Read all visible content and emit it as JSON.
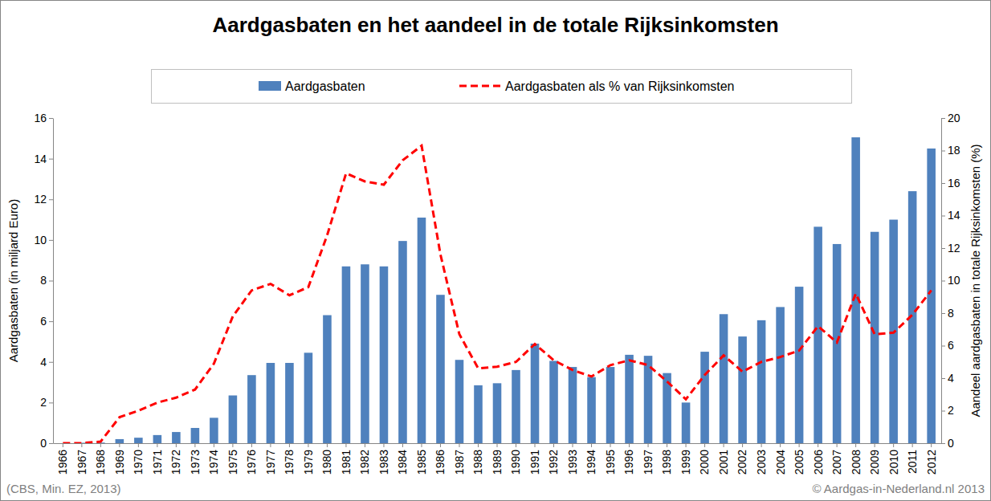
{
  "chart_data": {
    "type": "bar",
    "title": "Aardgasbaten en het aandeel in de totale Rijksinkomsten",
    "y_label": "Aardgasbaten (in miljard Euro)",
    "y2_label": "Aandeel aardgasbaten in totale Rijksinkomsten (%)",
    "annotations": [
      "(CBS, Min. EZ, 2013)",
      "© Aardgas-in-Nederland.nl 2013"
    ],
    "categories": [
      "1966",
      "1967",
      "1968",
      "1969",
      "1970",
      "1971",
      "1972",
      "1973",
      "1974",
      "1975",
      "1976",
      "1977",
      "1978",
      "1979",
      "1980",
      "1981",
      "1982",
      "1983",
      "1984",
      "1985",
      "1986",
      "1987",
      "1988",
      "1989",
      "1990",
      "1991",
      "1992",
      "1993",
      "1994",
      "1995",
      "1996",
      "1997",
      "1998",
      "1999",
      "2000",
      "2001",
      "2002",
      "2003",
      "2004",
      "2005",
      "2006",
      "2007",
      "2008",
      "2009",
      "2010",
      "2011",
      "2012"
    ],
    "series": [
      {
        "name": "Aardgasbaten",
        "type": "bar",
        "color": "#4f81bd",
        "values": [
          0,
          0.02,
          0.03,
          0.2,
          0.27,
          0.4,
          0.55,
          0.75,
          1.25,
          2.35,
          3.35,
          3.95,
          3.95,
          4.45,
          6.3,
          8.7,
          8.8,
          8.7,
          9.95,
          11.1,
          7.3,
          4.1,
          2.85,
          2.95,
          3.6,
          4.9,
          4.05,
          3.75,
          3.25,
          3.75,
          4.35,
          4.3,
          3.45,
          2.0,
          4.5,
          6.35,
          5.25,
          6.05,
          6.7,
          7.7,
          10.65,
          9.8,
          15.05,
          10.4,
          11.0,
          12.4,
          14.5
        ]
      },
      {
        "name": "Aardgasbaten als % van Rijksinkomsten",
        "type": "line",
        "color": "#ff0000",
        "line_style": "dashed",
        "axis": "y2",
        "values": [
          0,
          0,
          0.1,
          1.6,
          2.0,
          2.5,
          2.8,
          3.3,
          4.9,
          7.8,
          9.4,
          9.8,
          9.1,
          9.6,
          12.8,
          16.6,
          16.1,
          15.9,
          17.4,
          18.3,
          11.6,
          6.7,
          4.6,
          4.7,
          5.0,
          6.1,
          5.1,
          4.5,
          4.1,
          4.8,
          5.1,
          4.8,
          3.8,
          2.7,
          4.2,
          5.4,
          4.4,
          5.0,
          5.3,
          5.7,
          7.2,
          6.2,
          9.2,
          6.7,
          6.8,
          7.9,
          9.4
        ]
      }
    ],
    "ylim": [
      0,
      16
    ],
    "yticks": [
      0,
      2,
      4,
      6,
      8,
      10,
      12,
      14,
      16
    ],
    "y2lim": [
      0,
      20
    ],
    "y2ticks": [
      0,
      2,
      4,
      6,
      8,
      10,
      12,
      14,
      16,
      18,
      20
    ],
    "grid": false,
    "legend": "top"
  }
}
